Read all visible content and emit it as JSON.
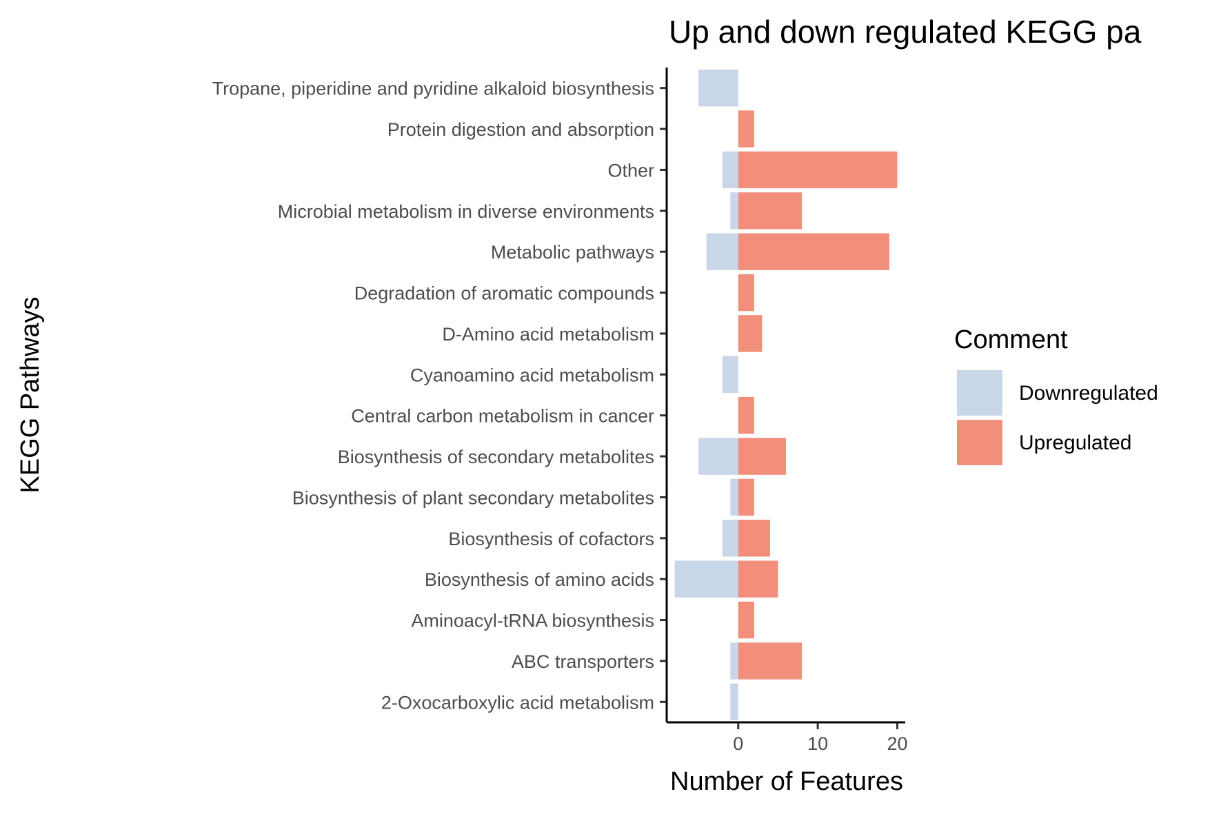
{
  "chart_data": {
    "type": "bar",
    "orientation": "horizontal",
    "title": "Up and down regulated KEGG pa",
    "xlabel": "Number of Features",
    "ylabel": "KEGG Pathways",
    "xlim": [
      -9,
      21
    ],
    "xticks": [
      0,
      10,
      20
    ],
    "grid": false,
    "legend_position": "right",
    "legend_title": "Comment",
    "categories": [
      "Tropane, piperidine and pyridine alkaloid biosynthesis",
      "Protein digestion and absorption",
      "Other",
      "Microbial metabolism in diverse environments",
      "Metabolic pathways",
      "Degradation of aromatic compounds",
      "D-Amino acid metabolism",
      "Cyanoamino acid metabolism",
      "Central carbon metabolism in cancer",
      "Biosynthesis of secondary metabolites",
      "Biosynthesis of plant secondary metabolites",
      "Biosynthesis of cofactors",
      "Biosynthesis of amino acids",
      "Aminoacyl-tRNA biosynthesis",
      "ABC transporters",
      "2-Oxocarboxylic acid metabolism"
    ],
    "series": [
      {
        "name": "Downregulated",
        "color": "#c9d6e8",
        "values": [
          -5,
          0,
          -2,
          -1,
          -4,
          0,
          0,
          -2,
          0,
          -5,
          -1,
          -2,
          -8,
          0,
          -1,
          -1
        ]
      },
      {
        "name": "Upregulated",
        "color": "#f28e7c",
        "values": [
          0,
          2,
          20,
          8,
          19,
          2,
          3,
          0,
          2,
          6,
          2,
          4,
          5,
          2,
          8,
          0
        ]
      }
    ]
  }
}
